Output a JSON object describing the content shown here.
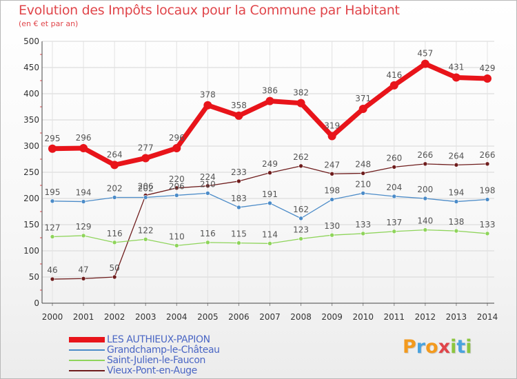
{
  "title": "Evolution des Impôts locaux pour la Commune par Habitant",
  "subtitle": "(en € et par an)",
  "logo": {
    "letters": [
      "P",
      "r",
      "o",
      "x",
      "i",
      "t",
      "i"
    ],
    "colors": [
      "#f39a1e",
      "#4aa3df",
      "#f39a1e",
      "#e0454a",
      "#8cc63f",
      "#4aa3df",
      "#8cc63f"
    ]
  },
  "chart_data": {
    "type": "line",
    "x": [
      "2000",
      "2001",
      "2002",
      "2003",
      "2004",
      "2005",
      "2006",
      "2007",
      "2008",
      "2009",
      "2010",
      "2011",
      "2012",
      "2013",
      "2014"
    ],
    "ylim": [
      0,
      500
    ],
    "yticks": [
      "0",
      "50",
      "100",
      "150",
      "200",
      "250",
      "300",
      "350",
      "400",
      "450",
      "500"
    ],
    "grid": true,
    "legend": "bottom-left",
    "series": [
      {
        "name": "LES AUTHIEUX-PAPION",
        "color": "#e8141a",
        "values": [
          295,
          296,
          264,
          277,
          296,
          378,
          358,
          386,
          382,
          319,
          371,
          416,
          457,
          431,
          429
        ],
        "labels": [
          "295",
          "296",
          "264",
          "277",
          "296",
          "378",
          "358",
          "386",
          "382",
          "319",
          "371",
          "416",
          "457",
          "431",
          "429"
        ]
      },
      {
        "name": "Grandchamp-le-Château",
        "color": "#4b8bc8",
        "values": [
          195,
          194,
          202,
          202,
          206,
          210,
          183,
          191,
          162,
          198,
          210,
          204,
          200,
          194,
          198
        ],
        "labels": [
          "195",
          "194",
          "202",
          "202",
          "206",
          "210",
          "183",
          "191",
          "162",
          "198",
          "210",
          "204",
          "200",
          "194",
          "198"
        ]
      },
      {
        "name": "Saint-Julien-le-Faucon",
        "color": "#8ed45a",
        "values": [
          127,
          129,
          116,
          122,
          110,
          116,
          115,
          114,
          123,
          130,
          133,
          137,
          140,
          138,
          133
        ],
        "labels": [
          "127",
          "129",
          "116",
          "122",
          "110",
          "116",
          "115",
          "114",
          "123",
          "130",
          "133",
          "137",
          "140",
          "138",
          "133"
        ]
      },
      {
        "name": "Vieux-Pont-en-Auge",
        "color": "#6e1c1c",
        "values": [
          46,
          47,
          50,
          206,
          220,
          224,
          233,
          249,
          262,
          247,
          248,
          260,
          266,
          264,
          266
        ],
        "labels": [
          "46",
          "47",
          "50",
          "206",
          "220",
          "224",
          "233",
          "249",
          "262",
          "247",
          "248",
          "260",
          "266",
          "264",
          "266"
        ]
      }
    ]
  }
}
